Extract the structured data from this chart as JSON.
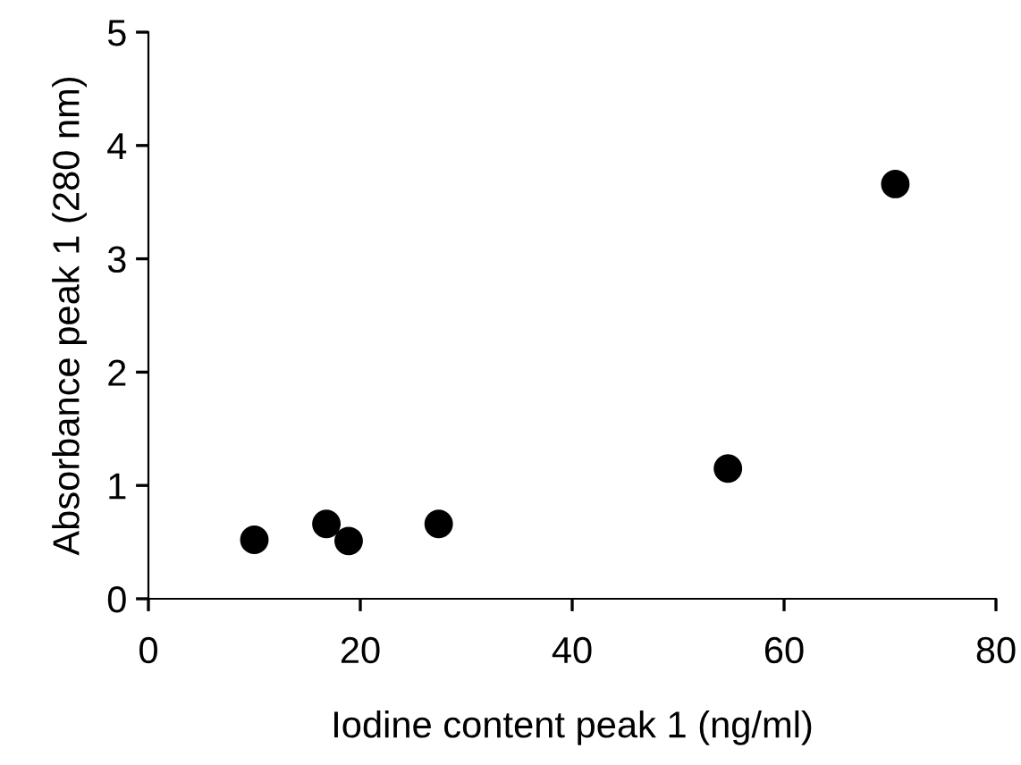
{
  "chart_data": {
    "type": "scatter",
    "xlabel": "Iodine content peak 1 (ng/ml)",
    "ylabel": "Absorbance peak 1 (280 nm)",
    "x": [
      10.0,
      16.8,
      18.9,
      27.4,
      54.7,
      70.5
    ],
    "values": [
      0.52,
      0.66,
      0.51,
      0.66,
      1.15,
      3.66
    ],
    "color": "#000000",
    "marker": "circle",
    "xlim": [
      0,
      80
    ],
    "xticks": [
      0,
      20,
      40,
      60,
      80
    ],
    "ylim": [
      0,
      5
    ],
    "yticks": [
      0,
      1,
      2,
      3,
      4,
      5
    ],
    "grid": false,
    "legend": false
  }
}
